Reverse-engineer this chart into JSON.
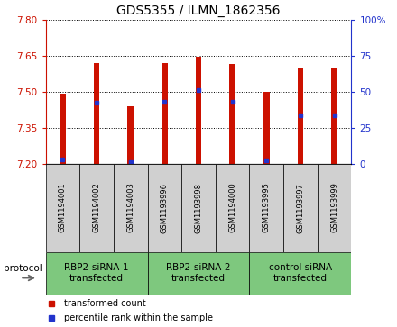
{
  "title": "GDS5355 / ILMN_1862356",
  "samples": [
    "GSM1194001",
    "GSM1194002",
    "GSM1194003",
    "GSM1193996",
    "GSM1193998",
    "GSM1194000",
    "GSM1193995",
    "GSM1193997",
    "GSM1193999"
  ],
  "bar_tops": [
    7.49,
    7.62,
    7.44,
    7.62,
    7.645,
    7.615,
    7.5,
    7.6,
    7.595
  ],
  "bar_bottom": 7.2,
  "blue_y": [
    7.216,
    7.455,
    7.206,
    7.458,
    7.505,
    7.456,
    7.215,
    7.4,
    7.4
  ],
  "ylim_left": [
    7.2,
    7.8
  ],
  "ylim_right": [
    0,
    100
  ],
  "yticks_left": [
    7.2,
    7.35,
    7.5,
    7.65,
    7.8
  ],
  "yticks_right": [
    0,
    25,
    50,
    75,
    100
  ],
  "bar_color": "#cc1100",
  "blue_color": "#2233cc",
  "groups": [
    {
      "label": "RBP2-siRNA-1\ntransfected",
      "start": 0,
      "end": 3
    },
    {
      "label": "RBP2-siRNA-2\ntransfected",
      "start": 3,
      "end": 6
    },
    {
      "label": "control siRNA\ntransfected",
      "start": 6,
      "end": 9
    }
  ],
  "group_color": "#7ec87e",
  "sample_box_color": "#d0d0d0",
  "protocol_label": "protocol",
  "bar_width": 0.18,
  "title_fontsize": 10,
  "tick_fontsize": 7.5,
  "sample_fontsize": 6,
  "group_fontsize": 7.5,
  "legend_fontsize": 7,
  "legend_marker_size": 4
}
